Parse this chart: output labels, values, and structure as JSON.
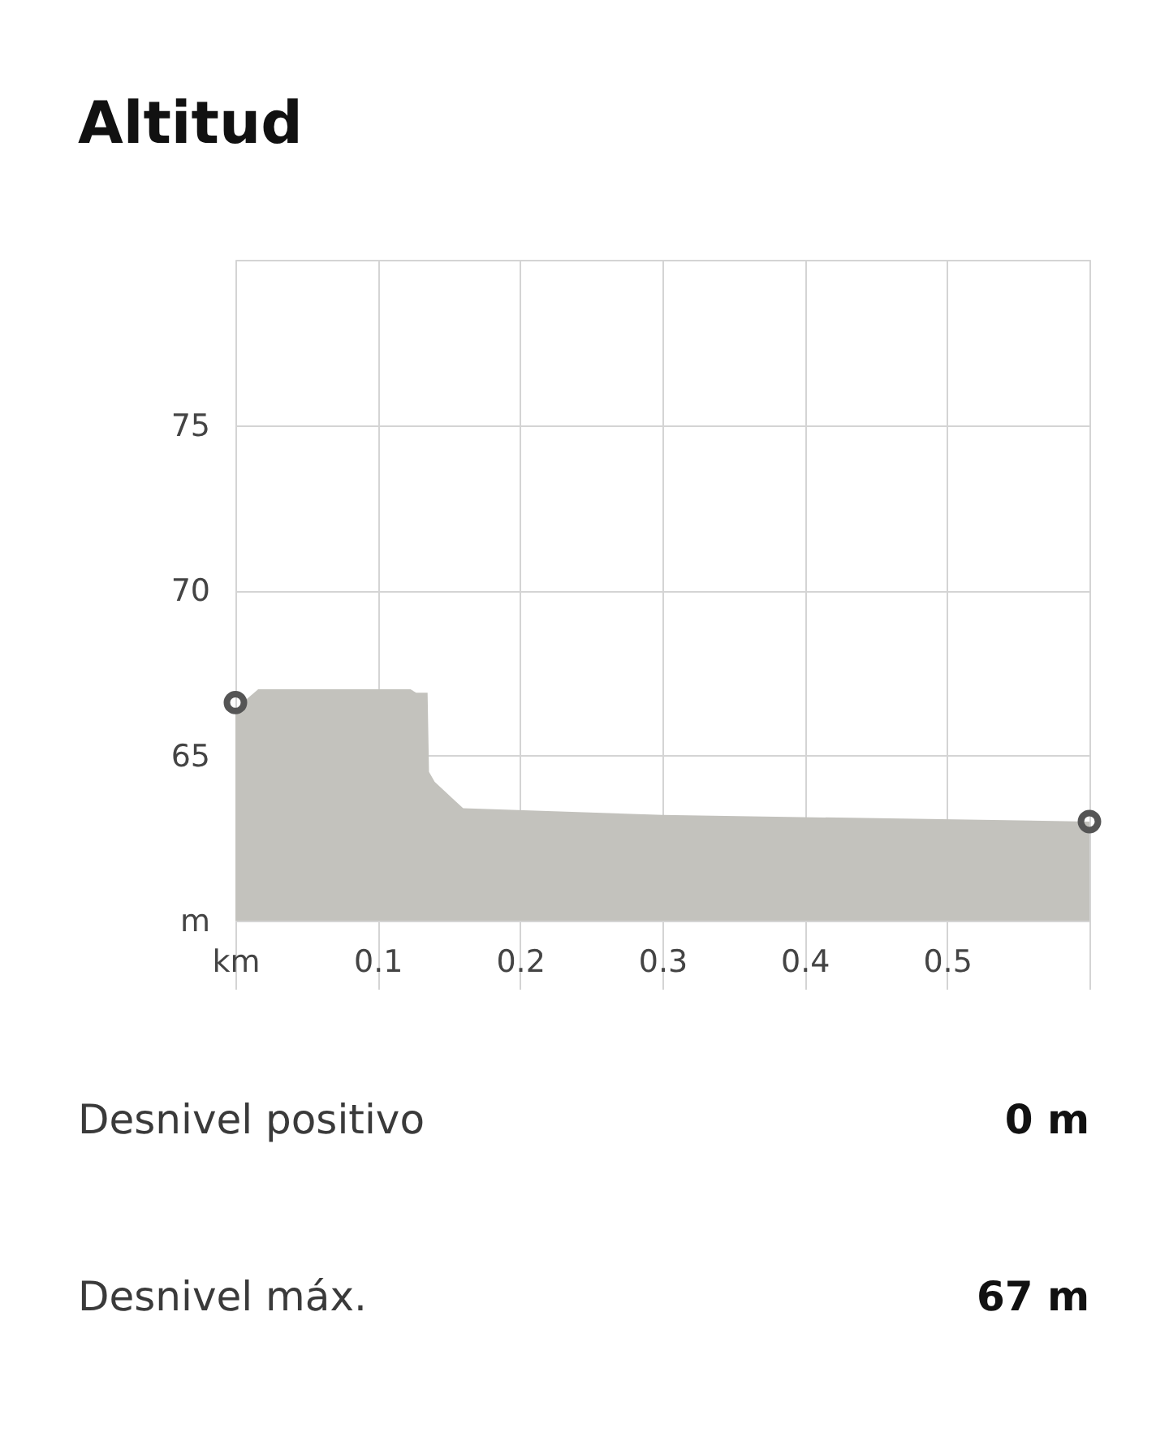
{
  "chart_data": {
    "type": "area",
    "title": "Altitud",
    "xlim": [
      0,
      0.6
    ],
    "xticks": [
      {
        "value": 0,
        "label": "km"
      },
      0.1,
      0.2,
      0.3,
      0.4,
      0.5,
      {
        "value": 0.6,
        "label": null
      }
    ],
    "ylim": [
      60,
      80
    ],
    "yticks": [
      {
        "value": 60,
        "label": "m"
      },
      65,
      70,
      75,
      {
        "value": 80,
        "label": null
      }
    ],
    "grid": true,
    "series": [
      {
        "color": "#c3c2bd",
        "x": [
          0,
          0.005,
          0.016,
          0.123,
          0.127,
          0.135,
          0.136,
          0.14,
          0.155,
          0.16,
          0.3,
          0.6
        ],
        "values": [
          66.3,
          66.6,
          67.0,
          67.0,
          66.9,
          66.9,
          64.5,
          64.2,
          63.6,
          63.4,
          63.2,
          63.0
        ]
      },
      {
        "type": "scatter",
        "marker": "circle",
        "color": "#555555",
        "x": [
          0,
          0.6
        ],
        "values": [
          66.6,
          63.0
        ]
      }
    ],
    "annotations": [
      "Desnivel positivo",
      "0 m",
      "Desnivel máx.",
      "67 m"
    ]
  }
}
